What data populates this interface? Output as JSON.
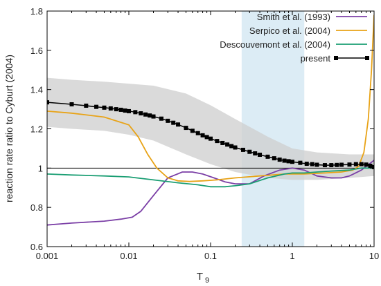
{
  "chart_data": {
    "type": "line",
    "xlabel_main": "T",
    "xlabel_sub": "9",
    "ylabel": "reaction rate ratio to Cyburt (2004)",
    "x_scale": "log",
    "xlim": [
      0.001,
      10
    ],
    "ylim": [
      0.6,
      1.8
    ],
    "x_ticks": [
      0.001,
      0.01,
      0.1,
      1,
      10
    ],
    "x_tick_labels": [
      "0.001",
      "0.01",
      "0.1",
      "1",
      "10"
    ],
    "y_ticks": [
      0.6,
      0.8,
      1,
      1.2,
      1.4,
      1.6,
      1.8
    ],
    "y_tick_labels": [
      "0.6",
      "0.8",
      "1",
      "1.2",
      "1.4",
      "1.6",
      "1.8"
    ],
    "reference_line": 1,
    "shaded_x_range": [
      0.24,
      1.4
    ],
    "shaded_color": "#dcecf5",
    "uncertainty_band": {
      "color": "#cfcfcf",
      "x": [
        0.001,
        0.002,
        0.005,
        0.01,
        0.02,
        0.05,
        0.1,
        0.2,
        0.5,
        1,
        2,
        5,
        10
      ],
      "upper": [
        1.46,
        1.45,
        1.44,
        1.43,
        1.42,
        1.38,
        1.32,
        1.25,
        1.16,
        1.1,
        1.08,
        1.07,
        1.07
      ],
      "lower": [
        1.21,
        1.2,
        1.19,
        1.17,
        1.14,
        1.07,
        1.02,
        0.98,
        0.95,
        0.94,
        0.94,
        0.95,
        0.96
      ]
    },
    "legend_position": "top-right",
    "series": [
      {
        "name": "Smith et al. (1993)",
        "color": "#7b3fa6",
        "marker": "none",
        "x": [
          0.001,
          0.002,
          0.005,
          0.008,
          0.011,
          0.014,
          0.02,
          0.03,
          0.045,
          0.06,
          0.08,
          0.11,
          0.15,
          0.2,
          0.3,
          0.45,
          0.7,
          1,
          1.4,
          2,
          3,
          4,
          5,
          7,
          10
        ],
        "y": [
          0.71,
          0.72,
          0.73,
          0.74,
          0.75,
          0.78,
          0.86,
          0.95,
          0.98,
          0.98,
          0.97,
          0.95,
          0.93,
          0.92,
          0.92,
          0.96,
          0.99,
          1.0,
          0.99,
          0.96,
          0.95,
          0.95,
          0.96,
          0.99,
          1.04
        ]
      },
      {
        "name": "Serpico et al. (2004)",
        "color": "#e8a317",
        "marker": "none",
        "x": [
          0.001,
          0.002,
          0.005,
          0.01,
          0.013,
          0.017,
          0.022,
          0.03,
          0.04,
          0.055,
          0.08,
          0.12,
          0.2,
          0.4,
          0.8,
          1.4,
          2.5,
          4,
          5.5,
          6.5,
          7.5,
          8.5,
          9.3,
          10
        ],
        "y": [
          1.29,
          1.28,
          1.26,
          1.22,
          1.16,
          1.07,
          1.0,
          0.95,
          0.935,
          0.932,
          0.935,
          0.94,
          0.95,
          0.96,
          0.97,
          0.97,
          0.975,
          0.98,
          0.99,
          1.01,
          1.08,
          1.25,
          1.5,
          1.78
        ]
      },
      {
        "name": "Descouvemont et al. (2004)",
        "color": "#1a9e73",
        "marker": "none",
        "x": [
          0.001,
          0.002,
          0.005,
          0.01,
          0.02,
          0.04,
          0.07,
          0.1,
          0.15,
          0.2,
          0.3,
          0.5,
          0.8,
          1,
          1.4,
          2,
          3,
          5,
          7,
          10
        ],
        "y": [
          0.97,
          0.965,
          0.96,
          0.955,
          0.94,
          0.925,
          0.915,
          0.905,
          0.905,
          0.91,
          0.92,
          0.95,
          0.97,
          0.975,
          0.975,
          0.98,
          0.985,
          0.99,
          1.0,
          1.0
        ]
      },
      {
        "name": "present",
        "color": "#000000",
        "marker": "square",
        "x": [
          0.001,
          0.002,
          0.003,
          0.004,
          0.005,
          0.006,
          0.007,
          0.008,
          0.009,
          0.01,
          0.012,
          0.014,
          0.016,
          0.018,
          0.02,
          0.025,
          0.03,
          0.035,
          0.04,
          0.05,
          0.06,
          0.07,
          0.08,
          0.09,
          0.1,
          0.12,
          0.14,
          0.16,
          0.18,
          0.2,
          0.25,
          0.3,
          0.35,
          0.4,
          0.5,
          0.6,
          0.7,
          0.8,
          0.9,
          1,
          1.25,
          1.5,
          1.75,
          2,
          2.5,
          3,
          3.5,
          4,
          5,
          6,
          7,
          8,
          9,
          10
        ],
        "y": [
          1.335,
          1.325,
          1.318,
          1.312,
          1.308,
          1.304,
          1.3,
          1.297,
          1.293,
          1.29,
          1.285,
          1.279,
          1.273,
          1.268,
          1.263,
          1.252,
          1.241,
          1.231,
          1.222,
          1.205,
          1.19,
          1.178,
          1.167,
          1.158,
          1.15,
          1.138,
          1.128,
          1.12,
          1.112,
          1.105,
          1.093,
          1.083,
          1.075,
          1.068,
          1.058,
          1.05,
          1.043,
          1.038,
          1.035,
          1.032,
          1.027,
          1.022,
          1.02,
          1.017,
          1.015,
          1.015,
          1.016,
          1.017,
          1.018,
          1.02,
          1.02,
          1.018,
          1.012,
          1.005
        ]
      }
    ]
  }
}
